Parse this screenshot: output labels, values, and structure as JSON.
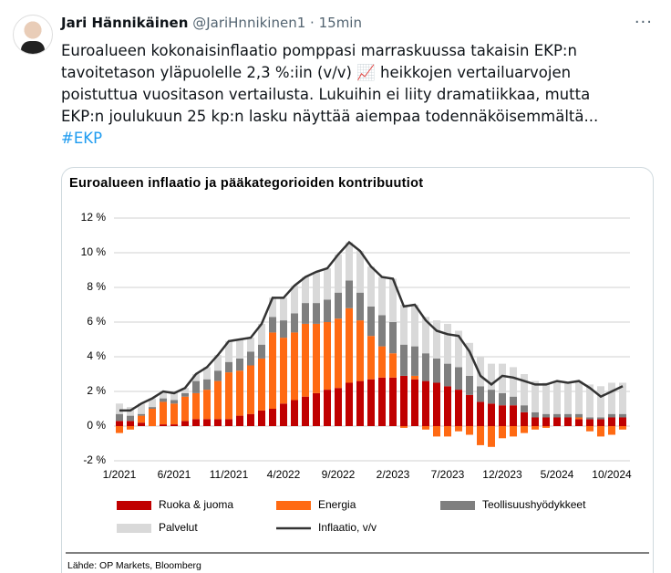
{
  "header": {
    "name": "Jari Hännikäinen",
    "handle": "@JariHnnikinen1",
    "separator": "·",
    "time": "15min"
  },
  "tweet": {
    "lines": [
      "Euroalueen kokonaisinflaatio pomppasi marraskuussa takaisin EKP:n",
      "tavoitetason yläpuolelle 2,3 %:iin (v/v) 📈 heikkojen vertailuarvojen",
      "poistuttua vuositason vertailusta. Lukuihin ei liity dramatiikkaa, mutta",
      "EKP:n joulukuun 25 kp:n lasku näyttää aiempaa todennäköisemmältä..."
    ],
    "hashtag": "#EKP"
  },
  "chart_data": {
    "type": "bar",
    "stacked": true,
    "title": "Euroalueen inflaatio ja pääkategorioiden kontribuutiot",
    "source": "Lähde: OP Markets, Bloomberg",
    "categories": [
      "1/2021",
      null,
      null,
      null,
      null,
      "6/2021",
      null,
      null,
      null,
      null,
      "11/2021",
      null,
      null,
      null,
      null,
      "4/2022",
      null,
      null,
      null,
      null,
      "9/2022",
      null,
      null,
      null,
      null,
      "2/2023",
      null,
      null,
      null,
      null,
      "7/2023",
      null,
      null,
      null,
      null,
      "12/2023",
      null,
      null,
      null,
      null,
      "5/2024",
      null,
      null,
      null,
      null,
      "10/2024",
      null
    ],
    "ylim": [
      -2,
      12
    ],
    "yticks": [
      {
        "value": -2,
        "label": "-2 %"
      },
      {
        "value": 0,
        "label": "0 %"
      },
      {
        "value": 2,
        "label": "2 %"
      },
      {
        "value": 4,
        "label": "4 %"
      },
      {
        "value": 6,
        "label": "6 %"
      },
      {
        "value": 8,
        "label": "8 %"
      },
      {
        "value": 10,
        "label": "10 %"
      },
      {
        "value": 12,
        "label": "12 %"
      }
    ],
    "grid": true,
    "series": [
      {
        "name": "Ruoka & juoma",
        "color": "#c00000",
        "values": [
          0.3,
          0.3,
          0.2,
          0.0,
          0.1,
          0.1,
          0.3,
          0.4,
          0.4,
          0.4,
          0.4,
          0.6,
          0.7,
          0.9,
          1.0,
          1.3,
          1.5,
          1.7,
          1.9,
          2.1,
          2.2,
          2.5,
          2.6,
          2.7,
          2.8,
          2.8,
          2.9,
          2.7,
          2.6,
          2.5,
          2.3,
          2.1,
          1.8,
          1.4,
          1.3,
          1.2,
          1.2,
          0.8,
          0.5,
          0.5,
          0.5,
          0.5,
          0.4,
          0.4,
          0.4,
          0.5,
          0.5
        ]
      },
      {
        "name": "Energia",
        "color": "#ff6a13",
        "values": [
          -0.4,
          -0.2,
          0.4,
          1.0,
          1.3,
          1.2,
          1.4,
          1.5,
          1.7,
          2.2,
          2.7,
          2.6,
          2.8,
          3.0,
          4.4,
          3.8,
          3.9,
          4.2,
          4.0,
          3.9,
          4.0,
          4.3,
          3.5,
          2.5,
          1.8,
          1.4,
          -0.1,
          0.2,
          -0.2,
          -0.6,
          -0.6,
          -0.3,
          -0.5,
          -1.1,
          -1.2,
          -0.7,
          -0.6,
          -0.4,
          -0.2,
          -0.1,
          0.0,
          0.0,
          0.1,
          -0.3,
          -0.6,
          -0.5,
          -0.2
        ]
      },
      {
        "name": "Teollisuushyödykkeet",
        "color": "#7f7f7f",
        "values": [
          0.4,
          0.3,
          0.1,
          0.1,
          0.2,
          0.2,
          0.2,
          0.7,
          0.6,
          0.6,
          0.6,
          0.7,
          0.8,
          0.8,
          0.9,
          1.0,
          1.1,
          1.2,
          1.2,
          1.3,
          1.5,
          1.6,
          1.6,
          1.7,
          1.8,
          1.8,
          1.8,
          1.7,
          1.6,
          1.4,
          1.3,
          1.3,
          1.1,
          0.9,
          0.8,
          0.7,
          0.5,
          0.4,
          0.3,
          0.2,
          0.2,
          0.2,
          0.2,
          0.1,
          0.1,
          0.2,
          0.2
        ]
      },
      {
        "name": "Palvelut",
        "color": "#d9d9d9",
        "values": [
          0.6,
          0.5,
          0.6,
          0.5,
          0.4,
          0.4,
          0.3,
          0.4,
          0.7,
          0.9,
          1.2,
          1.1,
          0.8,
          1.2,
          1.1,
          1.3,
          1.6,
          1.5,
          1.8,
          1.8,
          2.2,
          2.2,
          2.4,
          2.3,
          2.2,
          2.5,
          2.3,
          2.4,
          2.1,
          2.2,
          2.3,
          2.1,
          1.9,
          1.7,
          1.5,
          1.7,
          1.7,
          1.8,
          1.8,
          1.8,
          1.9,
          1.8,
          1.9,
          1.9,
          1.8,
          1.8,
          1.8
        ]
      },
      {
        "name": "Inflaatio, v/v",
        "color": "#333333",
        "type": "line",
        "values": [
          0.9,
          0.9,
          1.3,
          1.6,
          2.0,
          1.9,
          2.2,
          3.0,
          3.4,
          4.1,
          4.9,
          5.0,
          5.1,
          5.9,
          7.4,
          7.4,
          8.1,
          8.6,
          8.9,
          9.1,
          9.9,
          10.6,
          10.1,
          9.2,
          8.6,
          8.5,
          6.9,
          7.0,
          6.1,
          5.5,
          5.3,
          5.2,
          4.3,
          2.9,
          2.4,
          2.9,
          2.8,
          2.6,
          2.4,
          2.4,
          2.6,
          2.5,
          2.6,
          2.2,
          1.7,
          2.0,
          2.3
        ]
      }
    ]
  }
}
